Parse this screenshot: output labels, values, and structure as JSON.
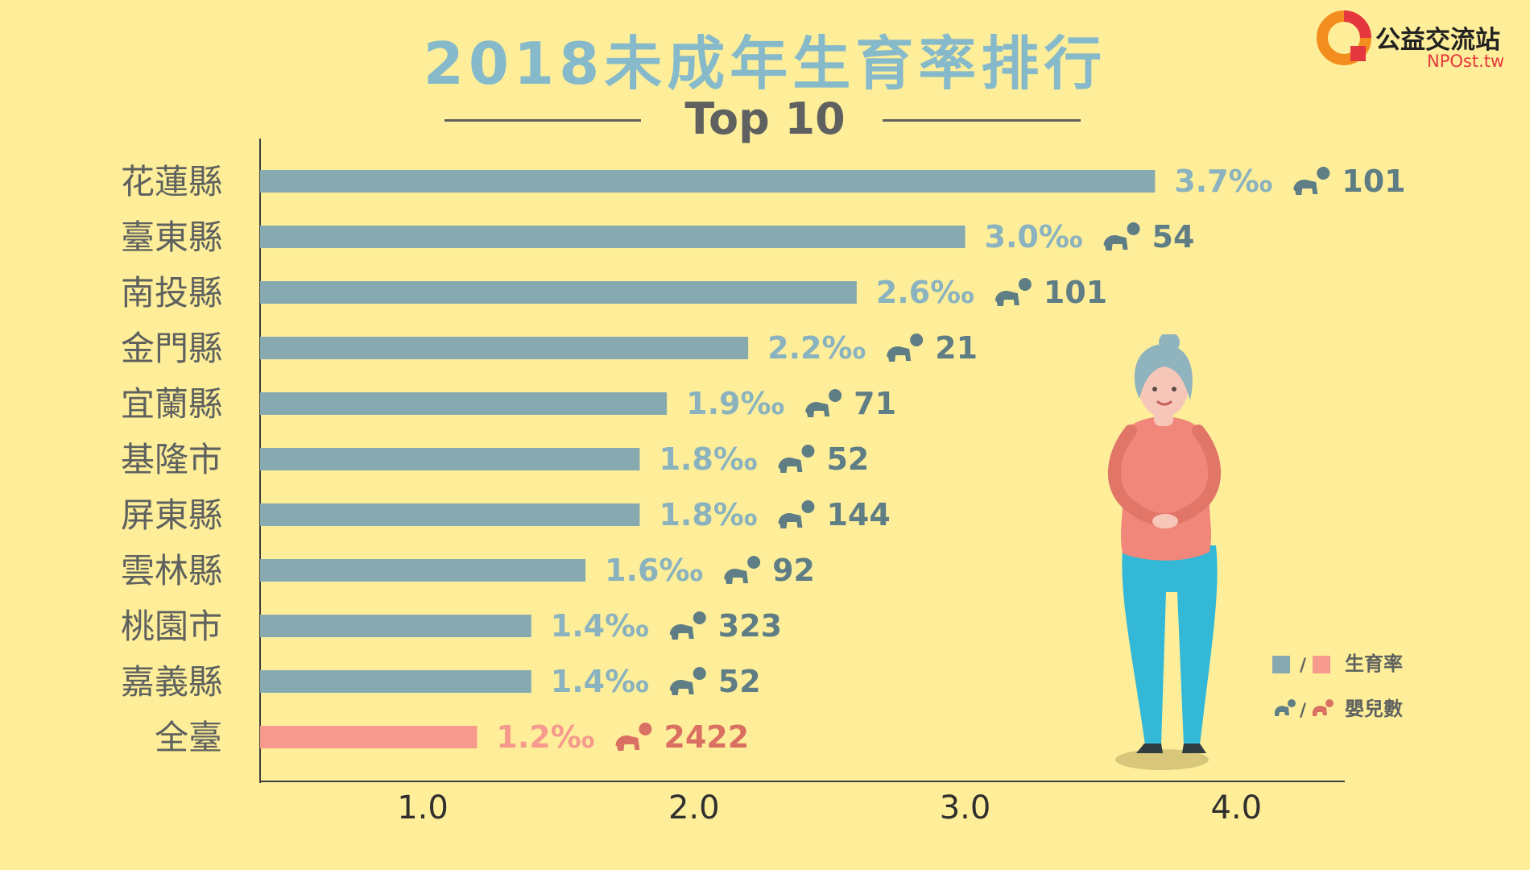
{
  "brand": {
    "name": "公益交流站",
    "url": "NPOst.tw"
  },
  "legend": {
    "rate_label": "生育率",
    "count_label": "嬰兒數",
    "separator": "/"
  },
  "colors": {
    "background": "#FEEE99",
    "bar": "#86AAB0",
    "bar_highlight": "#F59A8D",
    "label_value": "#8AB2BF",
    "count_text": "#5F7D85",
    "count_highlight": "#D97063",
    "category_text": "#5E615F",
    "brand_red": "#E5383E",
    "brand_orange": "#F28D1E"
  },
  "chart_data": {
    "type": "bar",
    "orientation": "horizontal",
    "title": "2018未成年生育率排行",
    "subtitle": "Top 10",
    "categories": [
      "花蓮縣",
      "臺東縣",
      "南投縣",
      "金門縣",
      "宜蘭縣",
      "基隆市",
      "屏東縣",
      "雲林縣",
      "桃園市",
      "嘉義縣",
      "全臺"
    ],
    "series": [
      {
        "name": "生育率",
        "values": [
          3.7,
          3.0,
          2.6,
          2.2,
          1.9,
          1.8,
          1.8,
          1.6,
          1.4,
          1.4,
          1.2
        ],
        "labels": [
          "3.7‰",
          "3.0‰",
          "2.6‰",
          "2.2‰",
          "1.9‰",
          "1.8‰",
          "1.8‰",
          "1.6‰",
          "1.4‰",
          "1.4‰",
          "1.2‰"
        ]
      },
      {
        "name": "嬰兒數",
        "values": [
          101,
          54,
          101,
          21,
          71,
          52,
          144,
          92,
          323,
          52,
          2422
        ]
      }
    ],
    "highlight_index": 10,
    "xlim": [
      0.4,
      4.4
    ],
    "x_ticks": [
      1.0,
      2.0,
      3.0,
      4.0
    ],
    "x_tick_labels": [
      "1.0",
      "2.0",
      "3.0",
      "4.0"
    ],
    "grid": false,
    "legend_position": "bottom-right"
  }
}
